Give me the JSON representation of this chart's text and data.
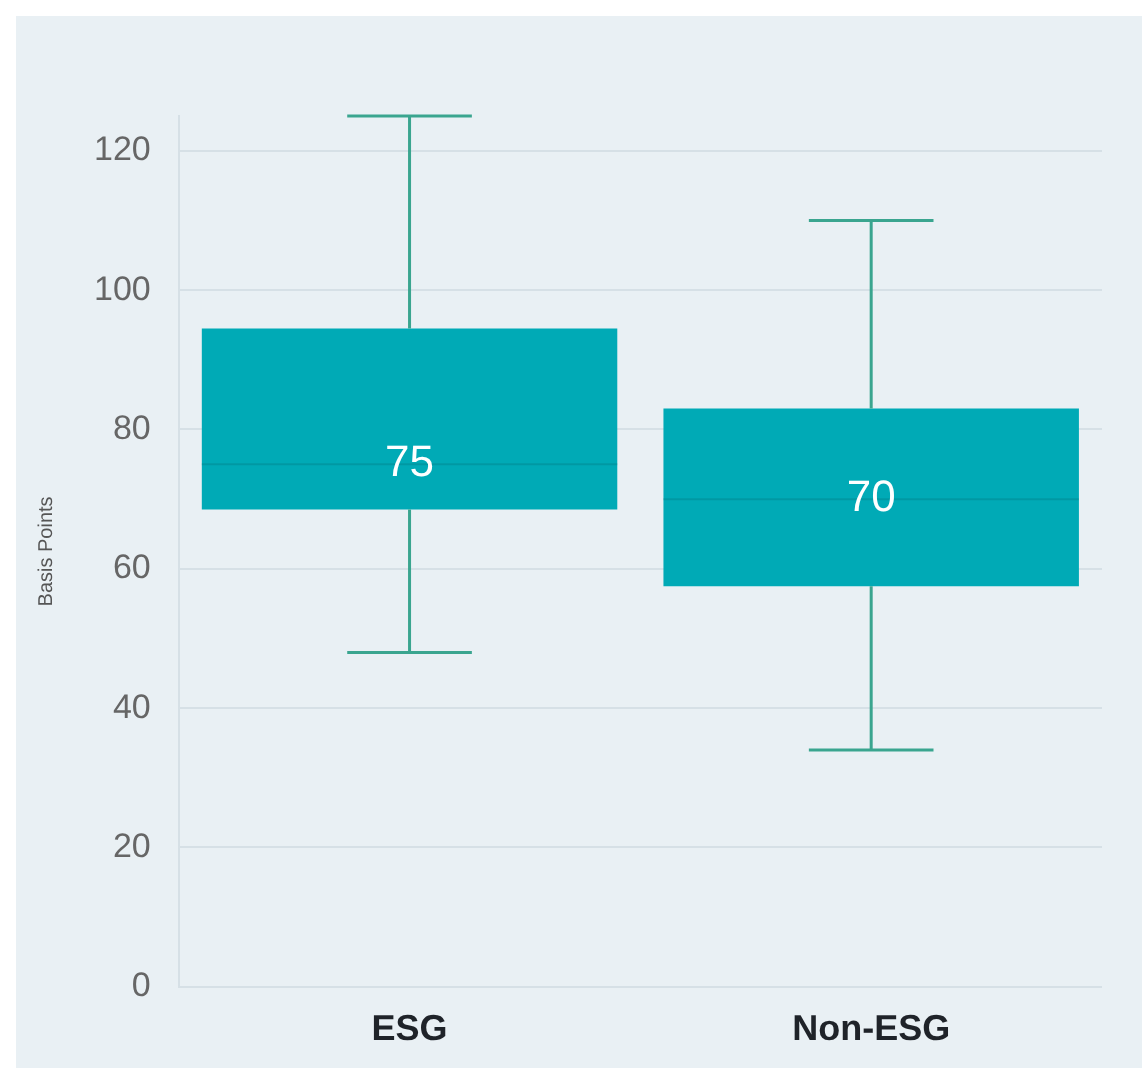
{
  "chart_data": {
    "type": "box",
    "ylabel": "Basis Points",
    "categories": [
      "ESG",
      "Non-ESG"
    ],
    "series": [
      {
        "color": "#00aab6",
        "value_labels": [
          "75",
          "70"
        ],
        "boxes": [
          {
            "low": 48,
            "q1": 68.5,
            "median": 75,
            "q3": 94.5,
            "high": 125
          },
          {
            "low": 34,
            "q1": 57.5,
            "median": 70,
            "q3": 83,
            "high": 110
          }
        ]
      }
    ],
    "ylim": [
      0,
      125
    ],
    "yticks": [
      0,
      20,
      40,
      60,
      80,
      100,
      120
    ],
    "grid": "y",
    "legend": false
  }
}
